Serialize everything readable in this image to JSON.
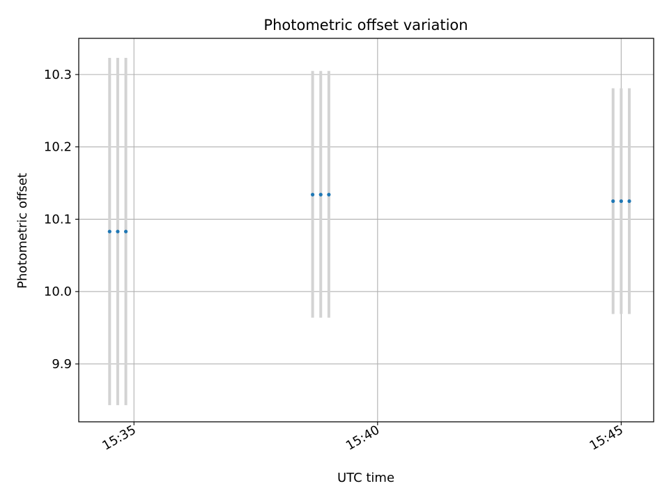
{
  "chart_data": {
    "type": "scatter",
    "title": "Photometric offset variation",
    "xlabel": "UTC time",
    "ylabel": "Photometric offset",
    "grid": true,
    "x_tick_labels": [
      "15:35",
      "15:40",
      "15:45"
    ],
    "x_ticks": [
      "15:35",
      "15:40",
      "15:45"
    ],
    "xlim": [
      "15:33:52",
      "15:45:40"
    ],
    "y_ticks": [
      9.9,
      10.0,
      10.1,
      10.2,
      10.3
    ],
    "y_tick_labels": [
      "9.9",
      "10.0",
      "10.1",
      "10.2",
      "10.3"
    ],
    "ylim": [
      9.82,
      10.35
    ],
    "series": [
      {
        "x": [
          "15:34:30",
          "15:34:40",
          "15:34:50",
          "15:38:40",
          "15:38:50",
          "15:39:00",
          "15:44:50",
          "15:45:00",
          "15:45:10"
        ],
        "y": [
          10.083,
          10.083,
          10.083,
          10.134,
          10.134,
          10.134,
          10.125,
          10.125,
          10.125
        ],
        "err_low": [
          9.843,
          9.843,
          9.843,
          9.964,
          9.964,
          9.964,
          9.969,
          9.969,
          9.969
        ],
        "err_high": [
          10.323,
          10.323,
          10.323,
          10.305,
          10.305,
          10.305,
          10.281,
          10.281,
          10.281
        ]
      }
    ],
    "colors": {
      "points": "#1f77b4",
      "errorbars": "#d3d3d3",
      "grid": "#b0b0b0"
    }
  }
}
